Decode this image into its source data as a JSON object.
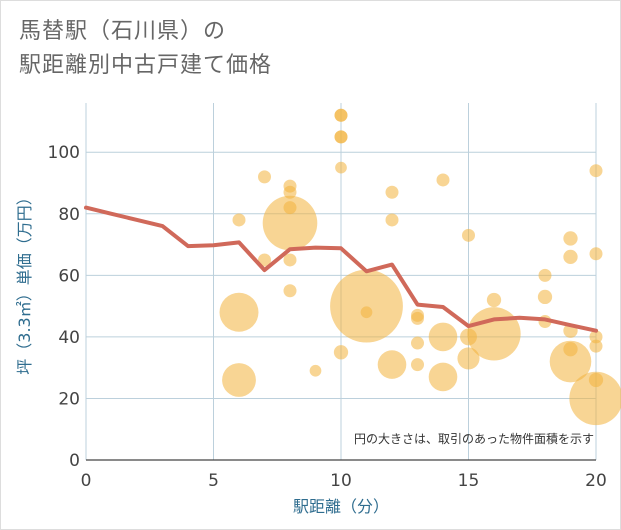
{
  "chart_data": {
    "type": "scatter",
    "title_lines": [
      "馬替駅（石川県）の",
      "駅距離別中古戸建て価格"
    ],
    "xlabel": "駅距離（分）",
    "ylabel": "坪（3.3㎡）単価（万円）",
    "xlim": [
      0,
      20
    ],
    "ylim": [
      0,
      116
    ],
    "x_ticks": [
      0,
      5,
      10,
      15,
      20
    ],
    "y_ticks": [
      0,
      20,
      40,
      60,
      80,
      100
    ],
    "grid": true,
    "note": "円の大きさは、取引のあった物件面積を示す",
    "colors": {
      "bubble": "#f2b33d",
      "line": "#d0695a",
      "grid": "#bcd0dc",
      "plot_bg": "#ffffff"
    },
    "bubbles": [
      {
        "x": 6,
        "y": 78,
        "s": 1
      },
      {
        "x": 6,
        "y": 48,
        "s": 3
      },
      {
        "x": 6,
        "y": 26,
        "s": 2.6
      },
      {
        "x": 7,
        "y": 92,
        "s": 1
      },
      {
        "x": 7,
        "y": 65,
        "s": 1
      },
      {
        "x": 8,
        "y": 89,
        "s": 1
      },
      {
        "x": 8,
        "y": 87,
        "s": 1
      },
      {
        "x": 8,
        "y": 82,
        "s": 1
      },
      {
        "x": 8,
        "y": 77,
        "s": 4.2
      },
      {
        "x": 8,
        "y": 65,
        "s": 1
      },
      {
        "x": 8,
        "y": 55,
        "s": 1
      },
      {
        "x": 9,
        "y": 29,
        "s": 0.9
      },
      {
        "x": 10,
        "y": 112,
        "s": 1
      },
      {
        "x": 10,
        "y": 112,
        "s": 1
      },
      {
        "x": 10,
        "y": 105,
        "s": 1
      },
      {
        "x": 10,
        "y": 105,
        "s": 1
      },
      {
        "x": 10,
        "y": 95,
        "s": 0.9
      },
      {
        "x": 10,
        "y": 35,
        "s": 1.1
      },
      {
        "x": 11,
        "y": 50,
        "s": 5.6
      },
      {
        "x": 11,
        "y": 48,
        "s": 0.9
      },
      {
        "x": 12,
        "y": 87,
        "s": 1
      },
      {
        "x": 12,
        "y": 78,
        "s": 1
      },
      {
        "x": 12,
        "y": 31,
        "s": 2.2
      },
      {
        "x": 13,
        "y": 47,
        "s": 1
      },
      {
        "x": 13,
        "y": 46,
        "s": 1
      },
      {
        "x": 13,
        "y": 38,
        "s": 1
      },
      {
        "x": 13,
        "y": 31,
        "s": 1
      },
      {
        "x": 14,
        "y": 91,
        "s": 1
      },
      {
        "x": 14,
        "y": 40,
        "s": 2.2
      },
      {
        "x": 14,
        "y": 27,
        "s": 2.2
      },
      {
        "x": 15,
        "y": 73,
        "s": 1
      },
      {
        "x": 15,
        "y": 40,
        "s": 1.3
      },
      {
        "x": 15,
        "y": 33,
        "s": 1.7
      },
      {
        "x": 16,
        "y": 52,
        "s": 1.1
      },
      {
        "x": 16,
        "y": 41,
        "s": 4.1
      },
      {
        "x": 18,
        "y": 60,
        "s": 1
      },
      {
        "x": 18,
        "y": 53,
        "s": 1.1
      },
      {
        "x": 18,
        "y": 45,
        "s": 1
      },
      {
        "x": 19,
        "y": 72,
        "s": 1.1
      },
      {
        "x": 19,
        "y": 66,
        "s": 1.1
      },
      {
        "x": 19,
        "y": 42,
        "s": 1.1
      },
      {
        "x": 19,
        "y": 36,
        "s": 1.1
      },
      {
        "x": 19,
        "y": 32,
        "s": 3.2
      },
      {
        "x": 20,
        "y": 94,
        "s": 1
      },
      {
        "x": 20,
        "y": 67,
        "s": 1
      },
      {
        "x": 20,
        "y": 40,
        "s": 1
      },
      {
        "x": 20,
        "y": 37,
        "s": 1
      },
      {
        "x": 20,
        "y": 26,
        "s": 1.1
      },
      {
        "x": 20,
        "y": 20,
        "s": 4.1
      }
    ],
    "trend_line": {
      "x": [
        0,
        1,
        2,
        3,
        4,
        5,
        6,
        7,
        8,
        9,
        10,
        11,
        12,
        13,
        14,
        15,
        16,
        17,
        18,
        19,
        20
      ],
      "y": [
        82,
        80,
        78,
        76,
        69.5,
        69.8,
        70.7,
        61.7,
        68.5,
        69,
        68.8,
        61.3,
        63.5,
        50.5,
        49.7,
        43.5,
        45.7,
        46.2,
        45.7,
        43.8,
        42
      ]
    }
  }
}
